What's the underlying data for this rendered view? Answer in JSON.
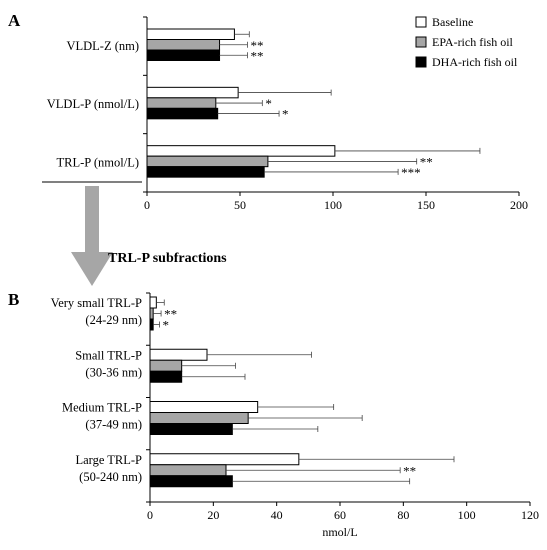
{
  "panel_a_letter": "A",
  "panel_b_letter": "B",
  "arrow_label": "TRL-P subfractions",
  "legend": [
    {
      "label": "Baseline",
      "color": "#ffffff"
    },
    {
      "label": "EPA-rich fish oil",
      "color": "#a6a6a6"
    },
    {
      "label": "DHA-rich fish oil",
      "color": "#000000"
    }
  ],
  "chart_data": [
    {
      "type": "bar",
      "orientation": "horizontal",
      "categories": [
        "VLDL-Z (nm)",
        "VLDL-P (nmol/L)",
        "TRL-P (nmol/L)"
      ],
      "series": [
        {
          "name": "Baseline",
          "values": [
            47,
            49,
            101
          ],
          "errors": [
            8,
            50,
            78
          ],
          "sig": [
            "",
            "",
            ""
          ]
        },
        {
          "name": "EPA-rich fish oil",
          "values": [
            39,
            37,
            65
          ],
          "errors": [
            15,
            25,
            80
          ],
          "sig": [
            "**",
            "*",
            "**"
          ]
        },
        {
          "name": "DHA-rich fish oil",
          "values": [
            39,
            38,
            63
          ],
          "errors": [
            15,
            33,
            72
          ],
          "sig": [
            "**",
            "*",
            "***"
          ]
        }
      ],
      "xlim": [
        0,
        200
      ],
      "xticks": [
        0,
        50,
        100,
        150,
        200
      ],
      "xlabel": "",
      "legend_position": "top-right"
    },
    {
      "type": "bar",
      "orientation": "horizontal",
      "categories": [
        [
          "Very small TRL-P",
          "(24-29 nm)"
        ],
        [
          "Small TRL-P",
          "(30-36 nm)"
        ],
        [
          "Medium TRL-P",
          "(37-49 nm)"
        ],
        [
          "Large TRL-P",
          "(50-240 nm)"
        ]
      ],
      "series": [
        {
          "name": "Baseline",
          "values": [
            2,
            18,
            34,
            47
          ],
          "errors": [
            2.5,
            33,
            24,
            49
          ],
          "sig": [
            "",
            "",
            "",
            ""
          ]
        },
        {
          "name": "EPA-rich fish oil",
          "values": [
            1,
            10,
            31,
            24
          ],
          "errors": [
            2.5,
            17,
            36,
            55
          ],
          "sig": [
            "**",
            "",
            "",
            "**"
          ]
        },
        {
          "name": "DHA-rich fish oil",
          "values": [
            1,
            10,
            26,
            26
          ],
          "errors": [
            2,
            20,
            27,
            56
          ],
          "sig": [
            "*",
            "",
            "",
            ""
          ]
        }
      ],
      "xlim": [
        0,
        120
      ],
      "xticks": [
        0,
        20,
        40,
        60,
        80,
        100,
        120
      ],
      "xlabel": "nmol/L"
    }
  ]
}
